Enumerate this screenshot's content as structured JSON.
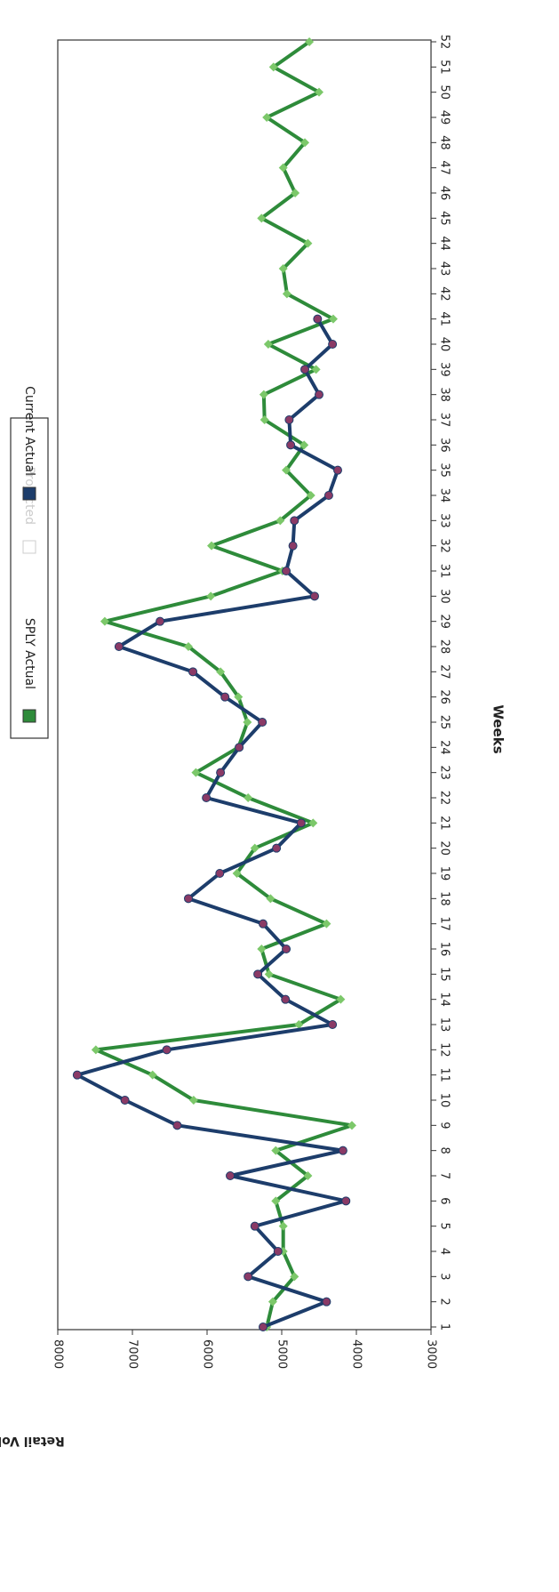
{
  "chart_data": {
    "type": "line",
    "x_label": "Weeks",
    "y_label": "Retail Volume",
    "categories": [
      1,
      2,
      3,
      4,
      5,
      6,
      7,
      8,
      9,
      10,
      11,
      12,
      13,
      14,
      15,
      16,
      17,
      18,
      19,
      20,
      21,
      22,
      23,
      24,
      25,
      26,
      27,
      28,
      29,
      30,
      31,
      32,
      33,
      34,
      35,
      36,
      37,
      38,
      39,
      40,
      41,
      42,
      43,
      44,
      45,
      46,
      47,
      48,
      49,
      50,
      51,
      52
    ],
    "ylim": [
      3000,
      8000
    ],
    "yticks": [
      3000,
      4000,
      5000,
      6000,
      7000,
      8000
    ],
    "grid": false,
    "legend": "top",
    "series": [
      {
        "name": "SPLY Actual",
        "color": "#2e8b3a",
        "marker_color": "#7cc86a",
        "values": [
          5200,
          5120,
          4830,
          4980,
          4980,
          5080,
          4650,
          5080,
          4060,
          6180,
          6730,
          7490,
          4770,
          4210,
          5170,
          5270,
          4400,
          5150,
          5600,
          5360,
          4580,
          5450,
          6150,
          5580,
          5460,
          5580,
          5820,
          6250,
          7370,
          5950,
          4990,
          5940,
          5020,
          4610,
          4940,
          4700,
          5230,
          5240,
          4540,
          5180,
          4310,
          4930,
          4980,
          4650,
          5270,
          4820,
          4980,
          4690,
          5200,
          4500,
          5110,
          4630
        ]
      },
      {
        "name": "Projected",
        "color": "#e4e4e4",
        "marker_color": "#e4e4e4",
        "values": [
          null,
          null,
          null,
          null,
          null,
          null,
          null,
          null,
          null,
          null,
          null,
          null,
          null,
          null,
          null,
          null,
          null,
          null,
          null,
          null,
          null,
          null,
          null,
          null,
          null,
          null,
          null,
          null,
          null,
          null,
          null,
          null,
          null,
          null,
          null,
          null,
          null,
          null,
          null,
          null,
          null,
          null,
          null,
          null,
          null,
          null,
          null,
          null,
          null,
          null,
          null,
          null
        ]
      },
      {
        "name": "Current Actual",
        "color": "#1d3d6b",
        "marker_color": "#8a3a66",
        "values": [
          5250,
          4400,
          5450,
          5050,
          5360,
          4140,
          5690,
          4180,
          6400,
          7100,
          7740,
          6540,
          4320,
          4950,
          5320,
          4940,
          5250,
          6250,
          5830,
          5070,
          4740,
          6010,
          5820,
          5570,
          5260,
          5760,
          6190,
          7180,
          6630,
          4560,
          4940,
          4850,
          4830,
          4370,
          4250,
          4880,
          4900,
          4500,
          4690,
          4320,
          4520,
          null,
          null,
          null,
          null,
          null,
          null,
          null,
          null,
          null,
          null,
          null
        ]
      }
    ]
  }
}
